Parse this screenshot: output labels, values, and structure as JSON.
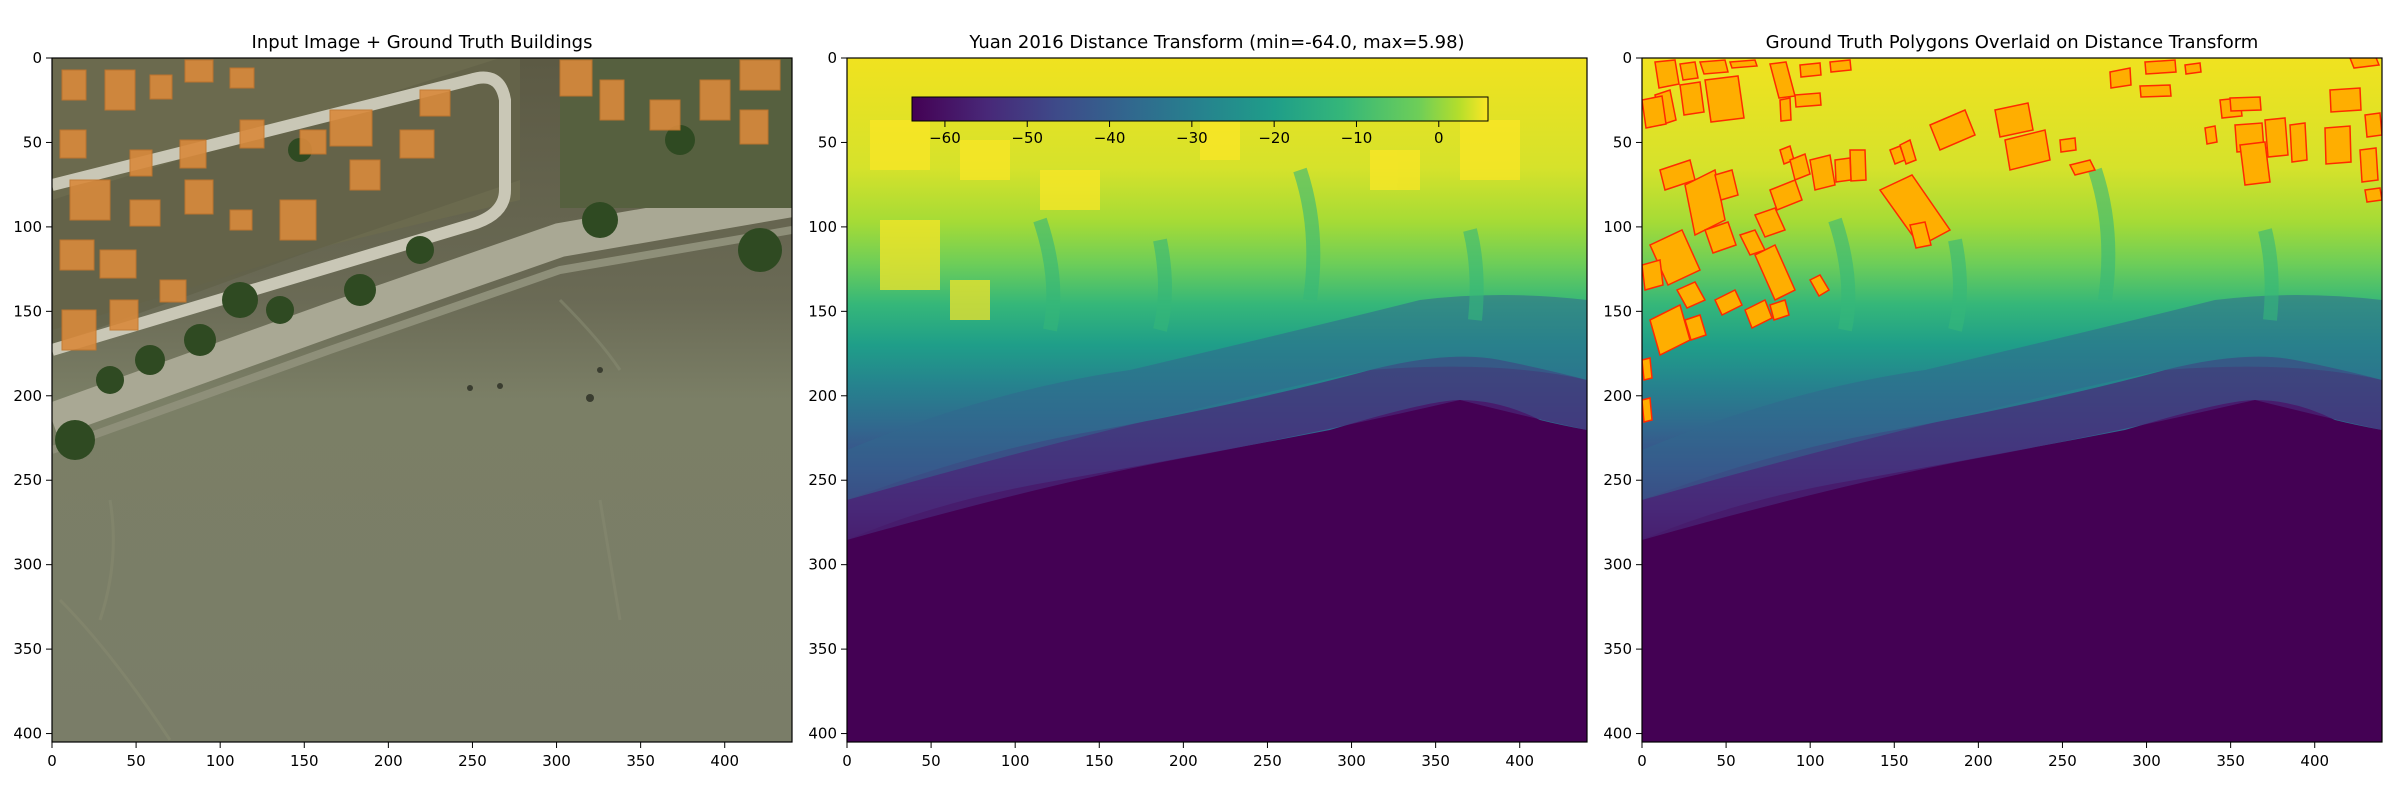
{
  "colors": {
    "viridis_low": "#440154",
    "viridis_high": "#fde725",
    "building_fill": "#ffa500",
    "building_edge": "#ff2a00",
    "photo_ground": "#7b7f66"
  },
  "chart_data": [
    {
      "type": "image",
      "title": "Input Image + Ground Truth Buildings",
      "xlabel": "",
      "ylabel": "",
      "xlim": [
        0,
        440
      ],
      "ylim": [
        405,
        0
      ],
      "xticks": [
        0,
        50,
        100,
        150,
        200,
        250,
        300,
        350,
        400
      ],
      "yticks": [
        0,
        50,
        100,
        150,
        200,
        250,
        300,
        350,
        400
      ]
    },
    {
      "type": "heatmap",
      "title": "Yuan 2016 Distance Transform (min=-64.0, max=5.98)",
      "xlabel": "",
      "ylabel": "",
      "xlim": [
        0,
        440
      ],
      "ylim": [
        405,
        0
      ],
      "xticks": [
        0,
        50,
        100,
        150,
        200,
        250,
        300,
        350,
        400
      ],
      "yticks": [
        0,
        50,
        100,
        150,
        200,
        250,
        300,
        350,
        400
      ],
      "colormap": "viridis",
      "vmin": -64.0,
      "vmax": 5.98,
      "colorbar": {
        "orientation": "horizontal",
        "placement": "top-inside",
        "ticks": [
          -60,
          -50,
          -40,
          -30,
          -20,
          -10,
          0
        ]
      }
    },
    {
      "type": "heatmap",
      "title": "Ground Truth Polygons Overlaid on Distance Transform",
      "xlabel": "",
      "ylabel": "",
      "xlim": [
        0,
        440
      ],
      "ylim": [
        405,
        0
      ],
      "xticks": [
        0,
        50,
        100,
        150,
        200,
        250,
        300,
        350,
        400
      ],
      "yticks": [
        0,
        50,
        100,
        150,
        200,
        250,
        300,
        350,
        400
      ],
      "colormap": "viridis",
      "overlay": "ground truth building polygons",
      "building_count": 62
    }
  ]
}
